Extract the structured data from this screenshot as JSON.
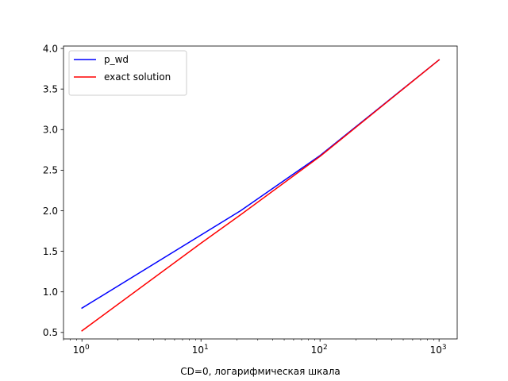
{
  "chart_data": {
    "type": "line",
    "title": "",
    "xlabel": "CD=0, логарифмическая шкала",
    "ylabel": "",
    "xscale": "log",
    "xlim": [
      0.7,
      1420
    ],
    "ylim": [
      0.42,
      4.03
    ],
    "x_ticks": [
      1,
      10,
      100,
      1000
    ],
    "x_tick_labels": [
      {
        "base": "10",
        "exp": "0"
      },
      {
        "base": "10",
        "exp": "1"
      },
      {
        "base": "10",
        "exp": "2"
      },
      {
        "base": "10",
        "exp": "3"
      }
    ],
    "y_ticks": [
      0.5,
      1.0,
      1.5,
      2.0,
      2.5,
      3.0,
      3.5,
      4.0
    ],
    "y_tick_labels": [
      "0.5",
      "1.0",
      "1.5",
      "2.0",
      "2.5",
      "3.0",
      "3.5",
      "4.0"
    ],
    "grid": false,
    "legend_position": "upper-left",
    "series": [
      {
        "name": "p_wd",
        "color": "#0000ff",
        "x": [
          1,
          21.5,
          100,
          1000
        ],
        "y": [
          0.8,
          2.0,
          2.68,
          3.86
        ]
      },
      {
        "name": "exact solution",
        "color": "#ff0000",
        "x": [
          1,
          10,
          21.5,
          100,
          1000
        ],
        "y": [
          0.52,
          1.6,
          1.95,
          2.67,
          3.86
        ]
      }
    ]
  }
}
